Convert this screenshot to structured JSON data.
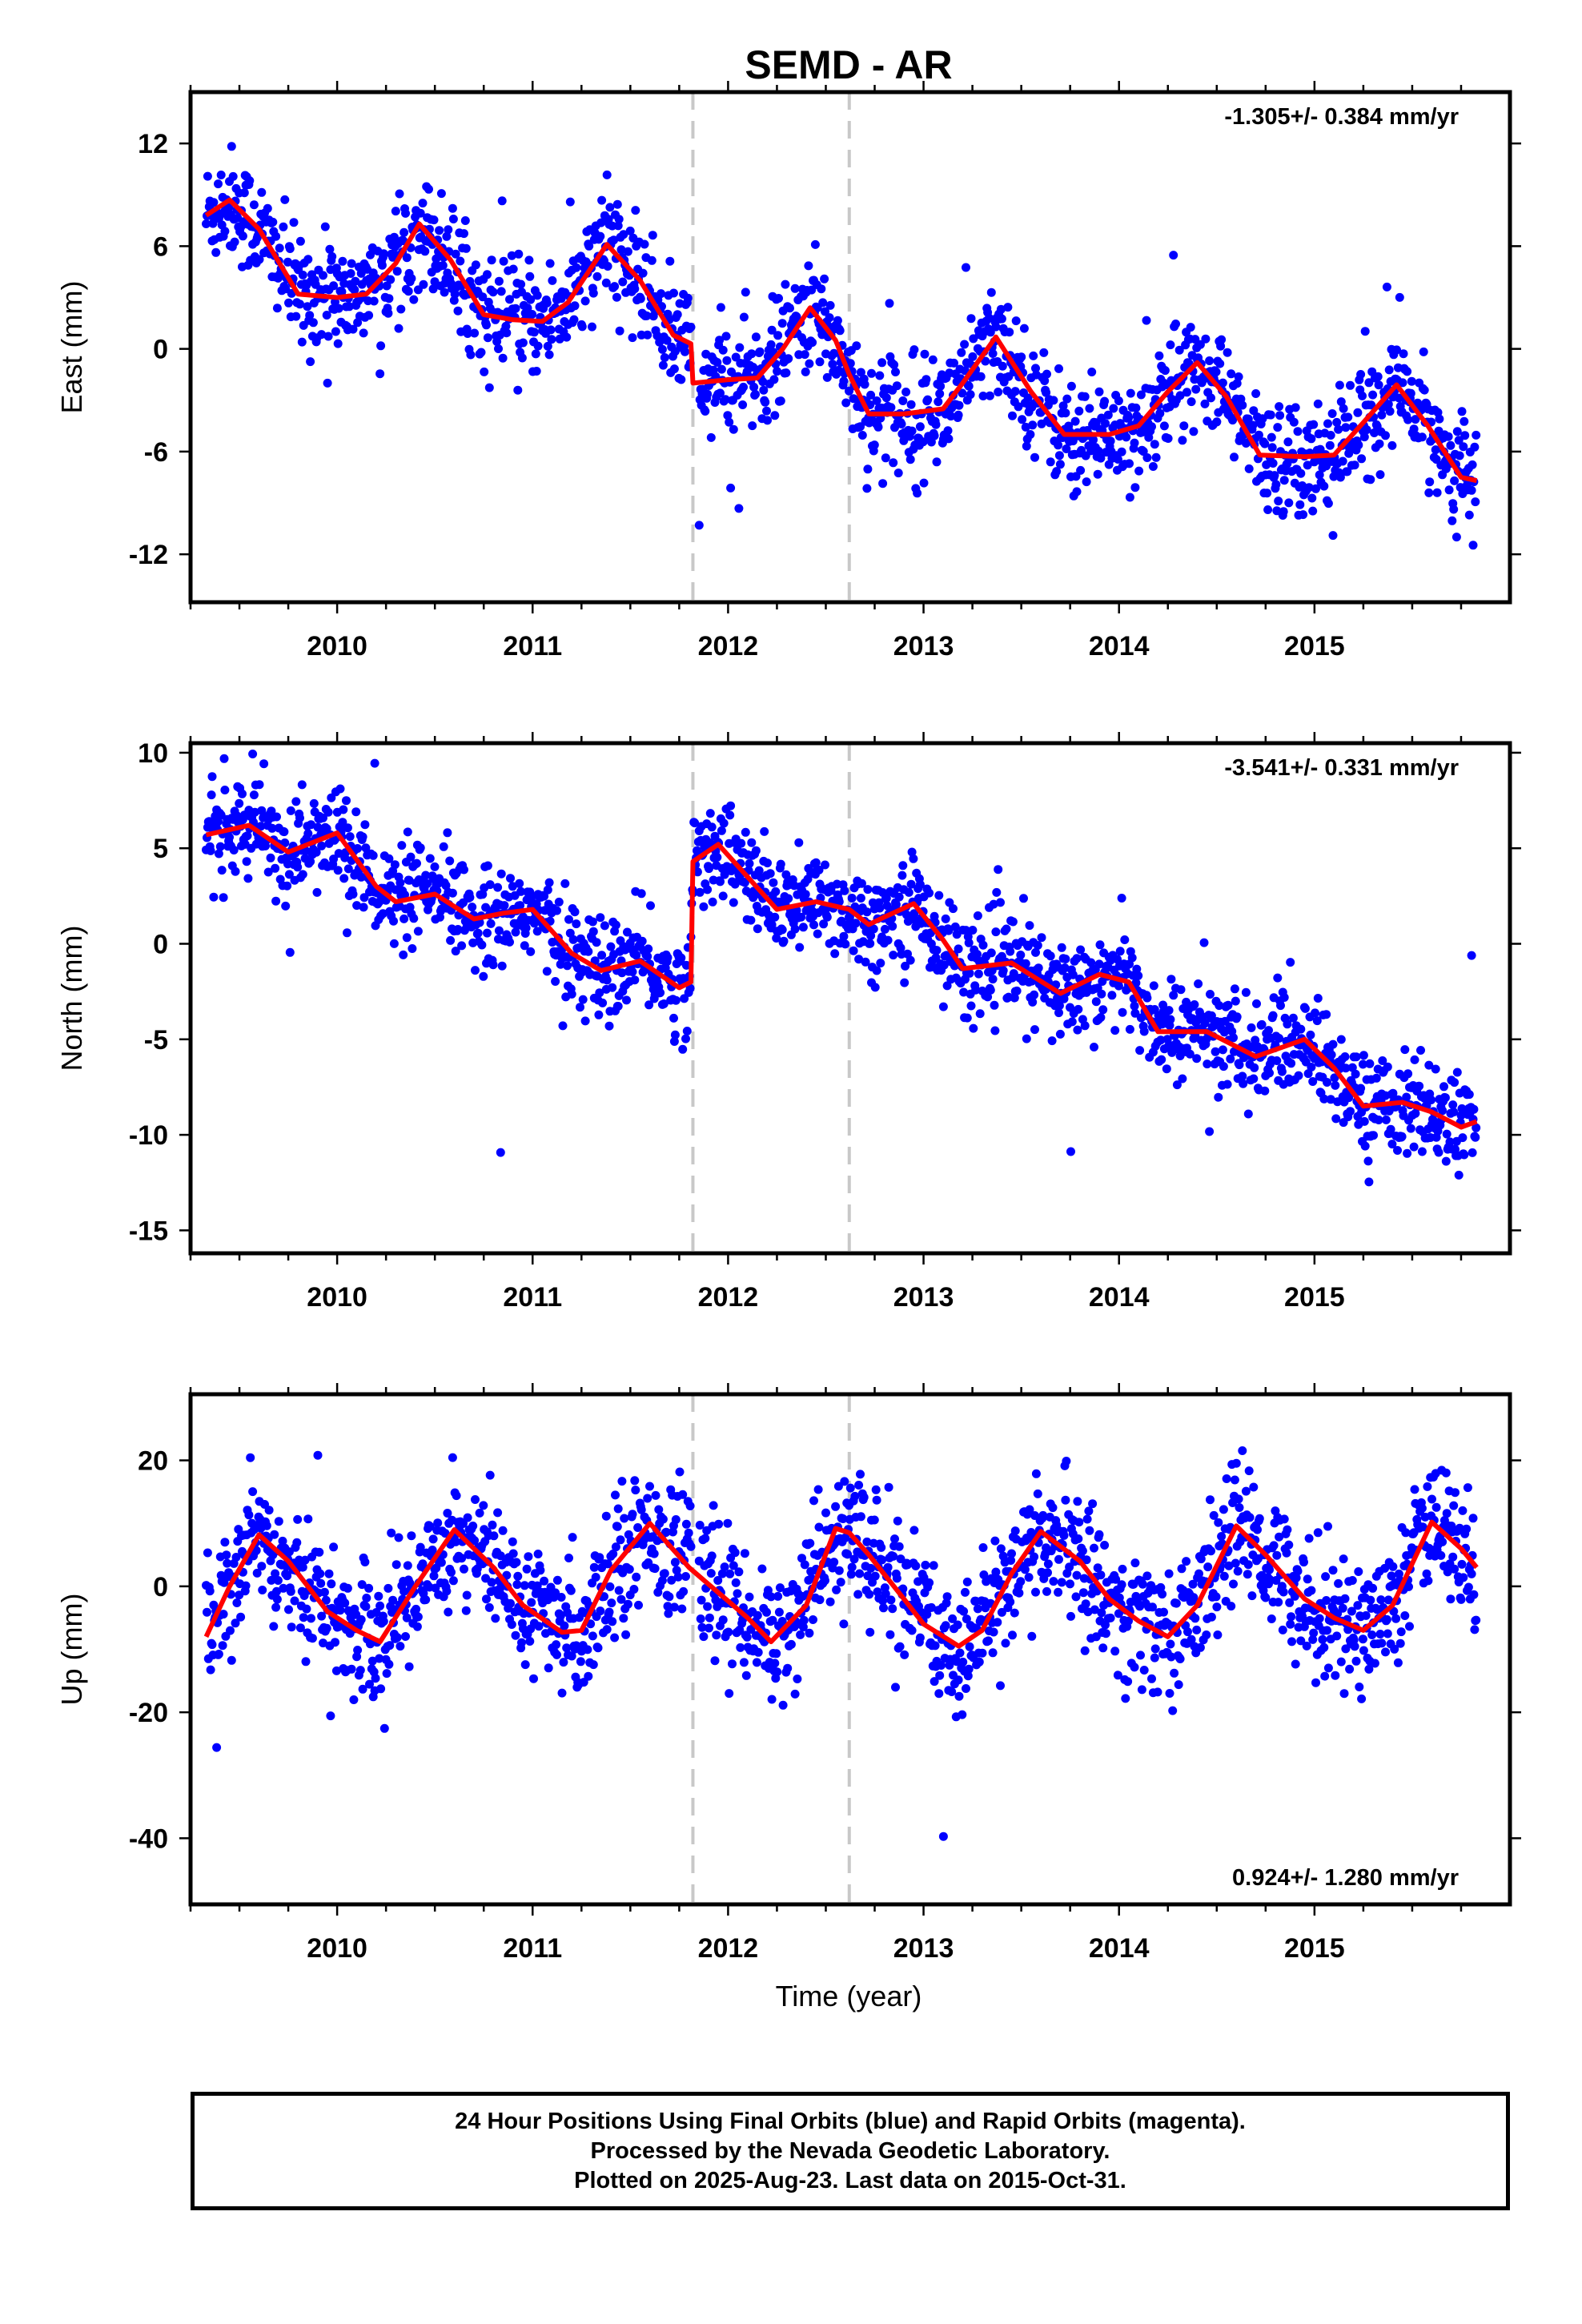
{
  "chart_data": {
    "type": "scatter",
    "title": "SEMD - AR",
    "xlabel": "Time (year)",
    "xlim": [
      2009.25,
      2016.0
    ],
    "x_ticks": [
      "2010",
      "2011",
      "2012",
      "2013",
      "2014",
      "2015"
    ],
    "vertical_markers": [
      2011.82,
      2012.62
    ],
    "marker_color": "#c8c8c8",
    "point_color": "#0000ff",
    "fit_color": "#ff0000",
    "data_start": 2009.33,
    "data_end": 2015.83,
    "panels": [
      {
        "id": "east",
        "ylabel": "East (mm)",
        "ylim": [
          -14.8,
          15.0
        ],
        "y_ticks": [
          12,
          6,
          0,
          -6,
          -12
        ],
        "rate_label": "-1.305+/- 0.384 mm/yr",
        "rate_position": "top-right",
        "trend_fit": [
          [
            2009.33,
            7.8
          ],
          [
            2009.45,
            8.7
          ],
          [
            2009.6,
            7.0
          ],
          [
            2009.8,
            3.2
          ],
          [
            2010.0,
            3.0
          ],
          [
            2010.15,
            3.2
          ],
          [
            2010.3,
            5.0
          ],
          [
            2010.42,
            7.3
          ],
          [
            2010.58,
            5.2
          ],
          [
            2010.75,
            2.0
          ],
          [
            2010.9,
            1.7
          ],
          [
            2011.05,
            1.6
          ],
          [
            2011.18,
            2.7
          ],
          [
            2011.38,
            6.1
          ],
          [
            2011.55,
            4.0
          ],
          [
            2011.72,
            0.8
          ],
          [
            2011.81,
            0.3
          ],
          [
            2011.82,
            -2.0
          ],
          [
            2012.0,
            -1.8
          ],
          [
            2012.15,
            -1.7
          ],
          [
            2012.28,
            0.0
          ],
          [
            2012.42,
            2.4
          ],
          [
            2012.55,
            0.5
          ],
          [
            2012.62,
            -1.5
          ],
          [
            2012.72,
            -3.8
          ],
          [
            2012.9,
            -3.8
          ],
          [
            2013.1,
            -3.5
          ],
          [
            2013.2,
            -2.0
          ],
          [
            2013.37,
            0.7
          ],
          [
            2013.55,
            -2.5
          ],
          [
            2013.72,
            -5.0
          ],
          [
            2013.95,
            -5.0
          ],
          [
            2014.1,
            -4.5
          ],
          [
            2014.25,
            -2.5
          ],
          [
            2014.4,
            -0.8
          ],
          [
            2014.55,
            -2.8
          ],
          [
            2014.72,
            -6.2
          ],
          [
            2014.95,
            -6.3
          ],
          [
            2015.1,
            -6.2
          ],
          [
            2015.25,
            -4.3
          ],
          [
            2015.42,
            -2.1
          ],
          [
            2015.58,
            -4.5
          ],
          [
            2015.75,
            -7.5
          ],
          [
            2015.83,
            -7.7
          ]
        ]
      },
      {
        "id": "north",
        "ylabel": "North (mm)",
        "ylim": [
          -16.2,
          10.5
        ],
        "y_ticks": [
          10,
          5,
          0,
          -5,
          -10,
          -15
        ],
        "rate_label": "-3.541+/- 0.331 mm/yr",
        "rate_position": "top-right",
        "trend_fit": [
          [
            2009.33,
            5.7
          ],
          [
            2009.55,
            6.2
          ],
          [
            2009.75,
            4.8
          ],
          [
            2010.0,
            5.8
          ],
          [
            2010.2,
            3.0
          ],
          [
            2010.3,
            2.2
          ],
          [
            2010.5,
            2.6
          ],
          [
            2010.7,
            1.3
          ],
          [
            2010.85,
            1.6
          ],
          [
            2011.0,
            1.8
          ],
          [
            2011.2,
            -0.5
          ],
          [
            2011.35,
            -1.4
          ],
          [
            2011.55,
            -0.9
          ],
          [
            2011.75,
            -2.3
          ],
          [
            2011.81,
            -2.0
          ],
          [
            2011.82,
            4.3
          ],
          [
            2011.95,
            5.2
          ],
          [
            2012.1,
            3.5
          ],
          [
            2012.25,
            1.8
          ],
          [
            2012.45,
            2.2
          ],
          [
            2012.62,
            1.8
          ],
          [
            2012.72,
            1.0
          ],
          [
            2012.8,
            1.4
          ],
          [
            2012.95,
            2.1
          ],
          [
            2013.1,
            0.2
          ],
          [
            2013.2,
            -1.3
          ],
          [
            2013.45,
            -1.0
          ],
          [
            2013.7,
            -2.6
          ],
          [
            2013.9,
            -1.6
          ],
          [
            2014.05,
            -2.0
          ],
          [
            2014.2,
            -4.6
          ],
          [
            2014.45,
            -4.6
          ],
          [
            2014.7,
            -5.9
          ],
          [
            2014.95,
            -5.0
          ],
          [
            2015.1,
            -6.5
          ],
          [
            2015.25,
            -8.5
          ],
          [
            2015.45,
            -8.3
          ],
          [
            2015.6,
            -8.8
          ],
          [
            2015.75,
            -9.6
          ],
          [
            2015.83,
            -9.3
          ]
        ]
      },
      {
        "id": "up",
        "ylabel": "Up (mm)",
        "ylim": [
          -50.5,
          30.5
        ],
        "y_ticks": [
          20,
          0,
          -20,
          -40
        ],
        "rate_label": "0.924+/- 1.280 mm/yr",
        "rate_position": "bottom-right",
        "trend_fit": [
          [
            2009.33,
            -8.0
          ],
          [
            2009.45,
            0.0
          ],
          [
            2009.6,
            8.2
          ],
          [
            2009.75,
            4.0
          ],
          [
            2009.95,
            -4.0
          ],
          [
            2010.1,
            -7.0
          ],
          [
            2010.22,
            -8.8
          ],
          [
            2010.4,
            0.0
          ],
          [
            2010.6,
            9.0
          ],
          [
            2010.8,
            3.0
          ],
          [
            2010.95,
            -3.0
          ],
          [
            2011.15,
            -7.3
          ],
          [
            2011.25,
            -7.0
          ],
          [
            2011.4,
            2.5
          ],
          [
            2011.6,
            10.0
          ],
          [
            2011.8,
            3.0
          ],
          [
            2011.95,
            -1.0
          ],
          [
            2012.1,
            -5.0
          ],
          [
            2012.22,
            -8.8
          ],
          [
            2012.4,
            -3.0
          ],
          [
            2012.55,
            9.2
          ],
          [
            2012.62,
            8.5
          ],
          [
            2012.72,
            5.0
          ],
          [
            2012.9,
            -2.0
          ],
          [
            2013.0,
            -6.0
          ],
          [
            2013.18,
            -9.5
          ],
          [
            2013.3,
            -7.0
          ],
          [
            2013.45,
            2.0
          ],
          [
            2013.6,
            8.7
          ],
          [
            2013.8,
            4.0
          ],
          [
            2013.95,
            -2.0
          ],
          [
            2014.1,
            -5.5
          ],
          [
            2014.25,
            -8.0
          ],
          [
            2014.4,
            -3.0
          ],
          [
            2014.6,
            9.6
          ],
          [
            2014.75,
            5.0
          ],
          [
            2014.95,
            -2.0
          ],
          [
            2015.1,
            -5.0
          ],
          [
            2015.25,
            -7.0
          ],
          [
            2015.4,
            -3.0
          ],
          [
            2015.6,
            10.2
          ],
          [
            2015.75,
            6.0
          ],
          [
            2015.83,
            3.0
          ]
        ]
      }
    ]
  },
  "footer": {
    "line1": "24 Hour Positions Using Final Orbits (blue) and Rapid Orbits (magenta).",
    "line2": "Processed by the Nevada Geodetic Laboratory.",
    "line3": "Plotted on 2025-Aug-23. Last data on 2015-Oct-31."
  }
}
